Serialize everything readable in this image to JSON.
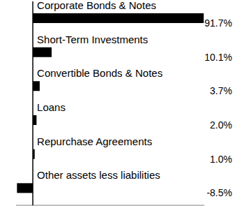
{
  "chart_data": {
    "type": "bar",
    "orientation": "horizontal",
    "categories": [
      "Corporate Bonds & Notes",
      "Short-Term Investments",
      "Convertible Bonds & Notes",
      "Loans",
      "Repurchase Agreements",
      "Other assets less liabilities"
    ],
    "values": [
      91.7,
      10.1,
      3.7,
      2.0,
      1.0,
      -8.5
    ],
    "value_labels": [
      "91.7%",
      "10.1%",
      "3.7%",
      "2.0%",
      "1.0%",
      "-8.5%"
    ],
    "color": "#000000",
    "xlim": [
      -9,
      92
    ],
    "xticks": [],
    "tick_labels": false,
    "data_labels": true,
    "grid": false
  }
}
